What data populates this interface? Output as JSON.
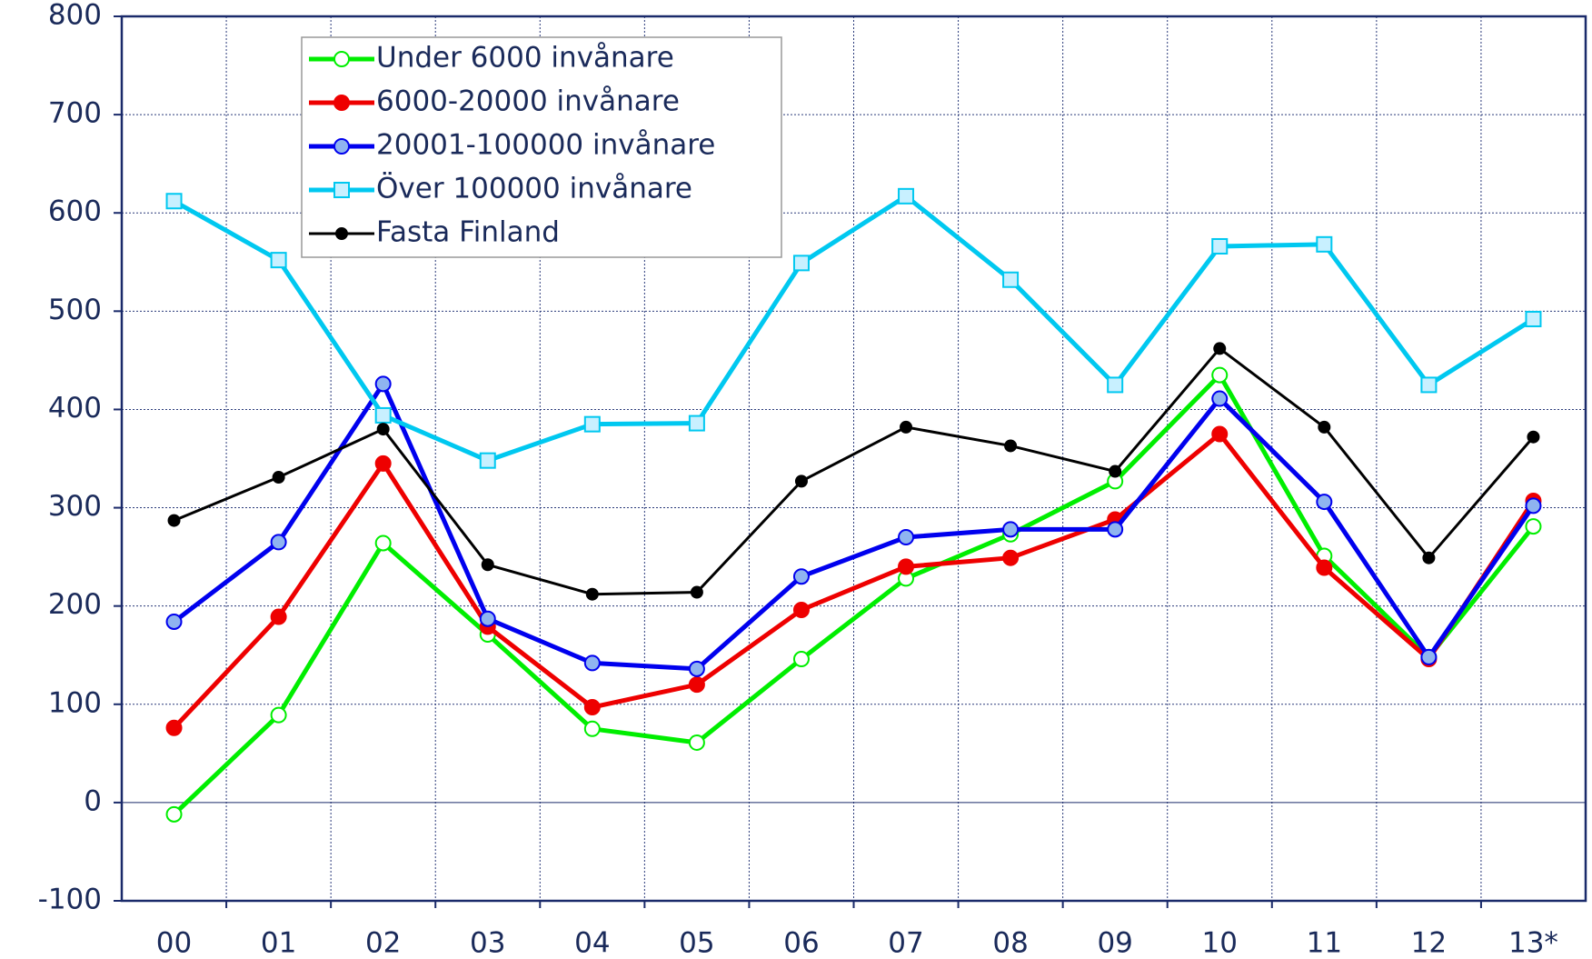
{
  "chart_data": {
    "type": "line",
    "categories": [
      "00",
      "01",
      "02",
      "03",
      "04",
      "05",
      "06",
      "07",
      "08",
      "09",
      "10",
      "11",
      "12",
      "13*"
    ],
    "ylim": [
      -100,
      800
    ],
    "yticks": [
      -100,
      0,
      100,
      200,
      300,
      400,
      500,
      600,
      700,
      800
    ],
    "grid": true,
    "legend": "upper left",
    "series": [
      {
        "name": "Under 6000 invånare",
        "color": "#00ee00",
        "marker": "circle",
        "marker_fill": "#ffffff",
        "line_width": 5,
        "values": [
          -12,
          89,
          264,
          171,
          75,
          61,
          146,
          228,
          273,
          327,
          435,
          251,
          148,
          281
        ]
      },
      {
        "name": "6000-20000 invånare",
        "color": "#ee0000",
        "marker": "circle",
        "marker_fill": "#ee0000",
        "line_width": 5,
        "values": [
          76,
          189,
          345,
          179,
          97,
          120,
          196,
          240,
          249,
          288,
          375,
          239,
          146,
          307
        ]
      },
      {
        "name": "20001-100000 invånare",
        "color": "#0000ee",
        "marker": "circle",
        "marker_fill": "#8fb4f0",
        "line_width": 5,
        "values": [
          184,
          265,
          426,
          187,
          142,
          136,
          230,
          270,
          278,
          278,
          411,
          306,
          148,
          302
        ]
      },
      {
        "name": "Över 100000 invånare",
        "color": "#00c8f0",
        "marker": "square",
        "marker_fill": "#c8f0ff",
        "line_width": 5,
        "values": [
          612,
          552,
          394,
          348,
          385,
          386,
          549,
          617,
          532,
          425,
          566,
          568,
          425,
          492
        ]
      },
      {
        "name": "Fasta Finland",
        "color": "#000000",
        "marker": "dot",
        "marker_fill": "#000000",
        "line_width": 3,
        "values": [
          287,
          331,
          380,
          242,
          212,
          214,
          327,
          382,
          363,
          337,
          462,
          382,
          249,
          372
        ]
      }
    ]
  }
}
